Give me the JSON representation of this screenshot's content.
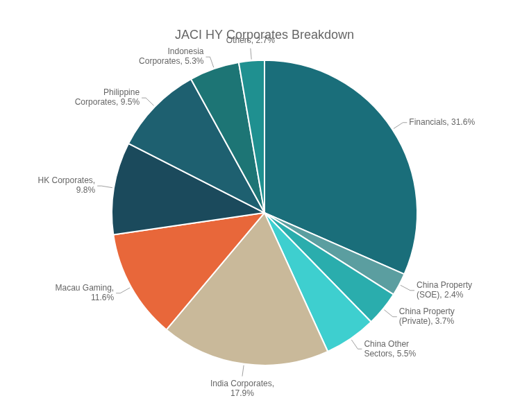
{
  "chart_data": {
    "type": "pie",
    "title": "JACI HY Corporates Breakdown",
    "values": [
      31.6,
      2.4,
      3.7,
      5.5,
      17.9,
      11.6,
      9.8,
      9.5,
      5.3,
      2.7
    ],
    "value_labels": [
      "Financials, 31.6%",
      "China Property\n(SOE), 2.4%",
      "China Property\n(Private), 3.7%",
      "China Other\nSectors, 5.5%",
      "India Corporates,\n17.9%",
      "Macau Gaming,\n11.6%",
      "HK Corporates,\n9.8%",
      "Philippine\nCorporates, 9.5%",
      "Indonesia\nCorporates, 5.3%",
      "Others, 2.7%"
    ],
    "colors": [
      "#1a6e7a",
      "#5b9ea0",
      "#2aadad",
      "#3ecfcf",
      "#c9b99a",
      "#e8673a",
      "#1b4a5c",
      "#1e6070",
      "#1d7575",
      "#1f9090"
    ],
    "data_labels": true,
    "legend": false
  }
}
